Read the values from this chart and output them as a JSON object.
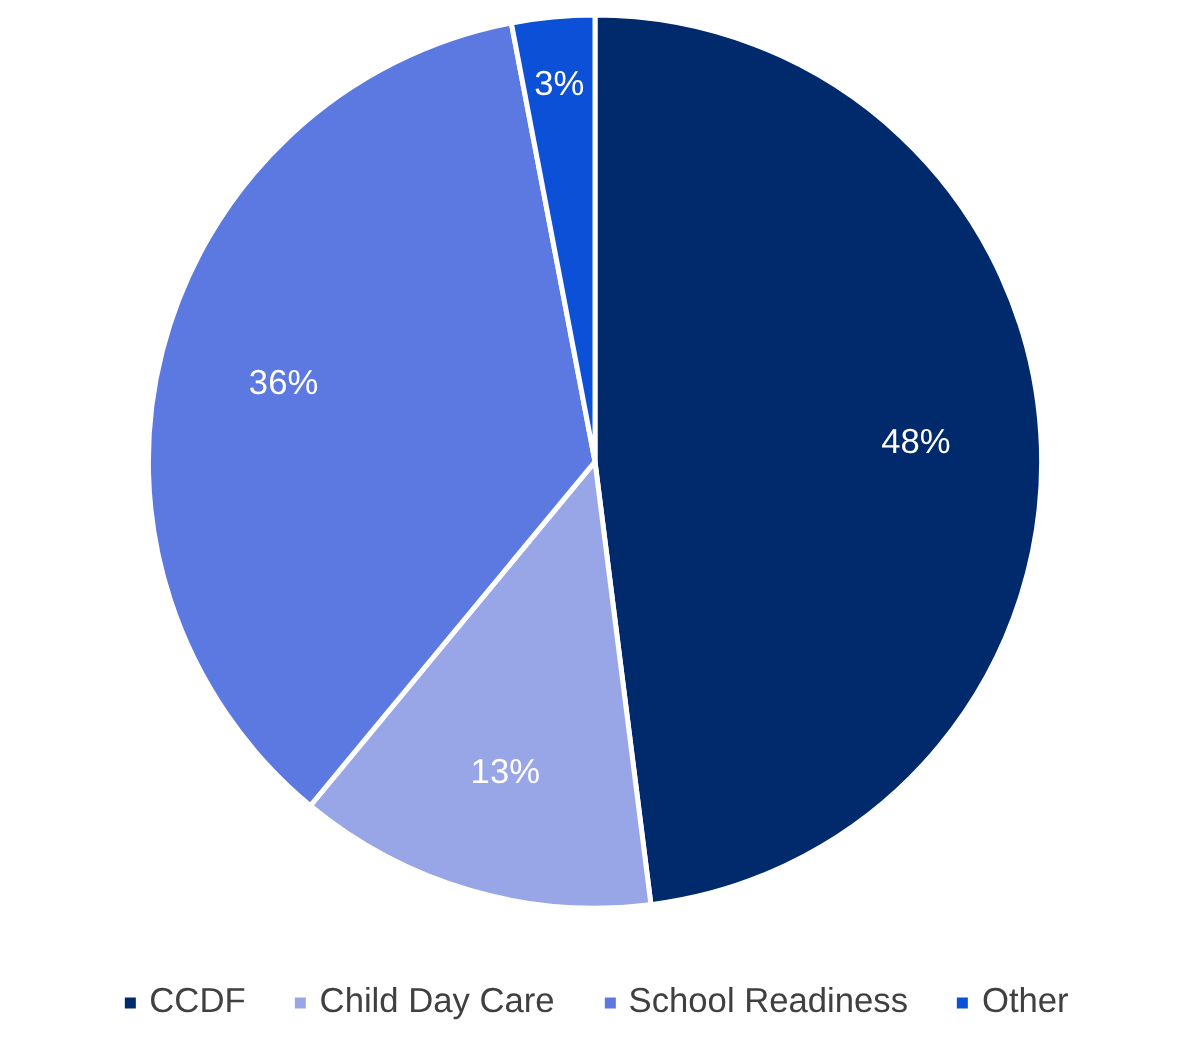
{
  "chart_data": {
    "type": "pie",
    "categories": [
      "CCDF",
      "Child Day Care",
      "School Readiness",
      "Other"
    ],
    "values": [
      48,
      13,
      36,
      3
    ],
    "colors": [
      "#002a6c",
      "#98a6e8",
      "#5b79e1",
      "#0b50d6"
    ],
    "value_labels": [
      "48%",
      "13%",
      "36%",
      "3%"
    ],
    "legend": "bottom"
  }
}
